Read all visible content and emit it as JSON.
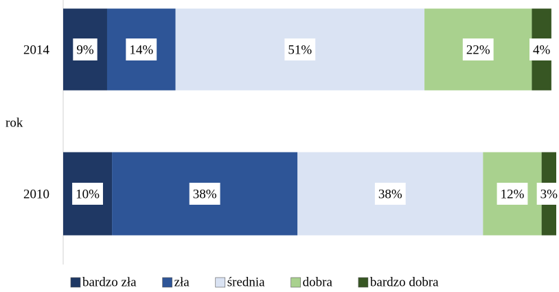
{
  "chart_data": {
    "type": "stacked-barh",
    "y_label": "rok",
    "categories": [
      "2014",
      "2010"
    ],
    "series": [
      {
        "name": "bardzo zła",
        "color": "#1f3864",
        "values": [
          9,
          10
        ],
        "value_labels": [
          "9%",
          "10%"
        ]
      },
      {
        "name": "zła",
        "color": "#2e5597",
        "values": [
          14,
          38
        ],
        "value_labels": [
          "14%",
          "38%"
        ]
      },
      {
        "name": "średnia",
        "color": "#dae3f3",
        "values": [
          51,
          38
        ],
        "value_labels": [
          "51%",
          "38%"
        ]
      },
      {
        "name": "dobra",
        "color": "#a9d18e",
        "values": [
          22,
          12
        ],
        "value_labels": [
          "22%",
          "12%"
        ]
      },
      {
        "name": "bardzo dobra",
        "color": "#375623",
        "values": [
          4,
          3
        ],
        "value_labels": [
          "4%",
          "3%"
        ]
      }
    ],
    "xlim": [
      0,
      101
    ],
    "legend": "bottom"
  }
}
